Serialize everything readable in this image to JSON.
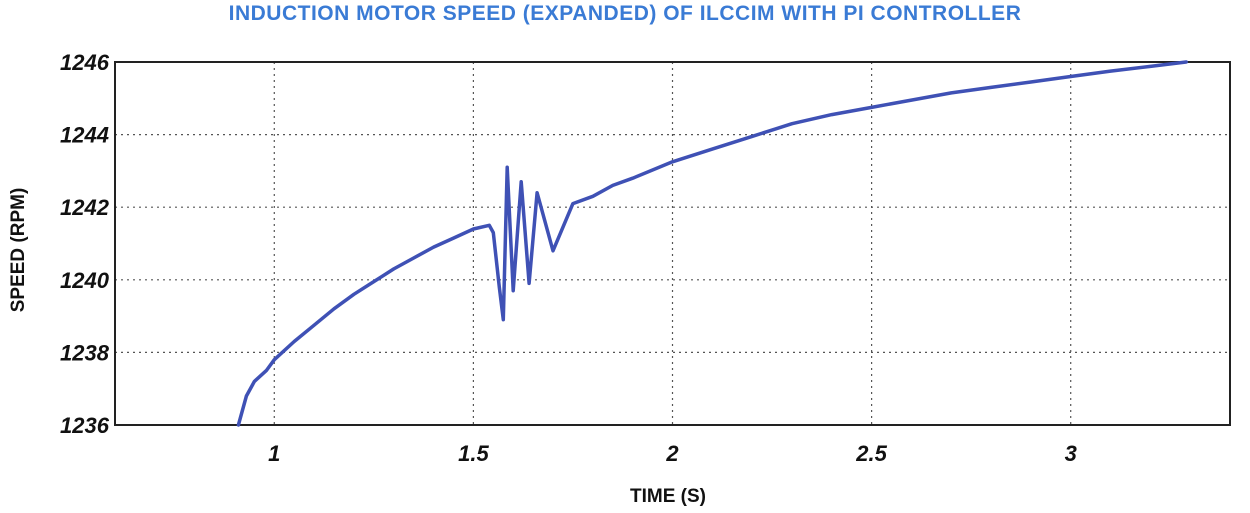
{
  "chart_data": {
    "type": "line",
    "title": "INDUCTION MOTOR SPEED (EXPANDED) OF ILCCIM WITH PI CONTROLLER",
    "xlabel": "TIME (S)",
    "ylabel": "SPEED (RPM)",
    "xlim": [
      0.6,
      3.4
    ],
    "ylim": [
      1236,
      1246
    ],
    "x_ticks": [
      "1",
      "1.5",
      "2",
      "2.5",
      "3"
    ],
    "y_ticks": [
      "1236",
      "1238",
      "1240",
      "1242",
      "1244",
      "1246"
    ],
    "grid": true,
    "colors": {
      "line": "#3f51b5",
      "title": "#3a7bd5"
    },
    "series": [
      {
        "x": [
          0.91,
          0.93,
          0.95,
          0.98,
          1.0,
          1.05,
          1.1,
          1.15,
          1.2,
          1.25,
          1.3,
          1.35,
          1.4,
          1.45,
          1.5,
          1.54,
          1.55,
          1.565,
          1.575,
          1.585,
          1.6,
          1.62,
          1.64,
          1.66,
          1.7,
          1.75,
          1.8,
          1.85,
          1.9,
          2.0,
          2.1,
          2.2,
          2.3,
          2.4,
          2.5,
          2.6,
          2.7,
          2.8,
          2.9,
          3.0,
          3.1,
          3.2,
          3.29
        ],
        "y": [
          1236.0,
          1236.8,
          1237.2,
          1237.5,
          1237.8,
          1238.3,
          1238.75,
          1239.2,
          1239.6,
          1239.95,
          1240.3,
          1240.6,
          1240.9,
          1241.15,
          1241.4,
          1241.5,
          1241.3,
          1239.8,
          1238.9,
          1243.1,
          1239.7,
          1242.7,
          1239.9,
          1242.4,
          1240.8,
          1242.1,
          1242.3,
          1242.6,
          1242.8,
          1243.25,
          1243.6,
          1243.95,
          1244.3,
          1244.55,
          1244.75,
          1244.95,
          1245.15,
          1245.3,
          1245.45,
          1245.6,
          1245.75,
          1245.88,
          1246.0
        ]
      }
    ]
  }
}
